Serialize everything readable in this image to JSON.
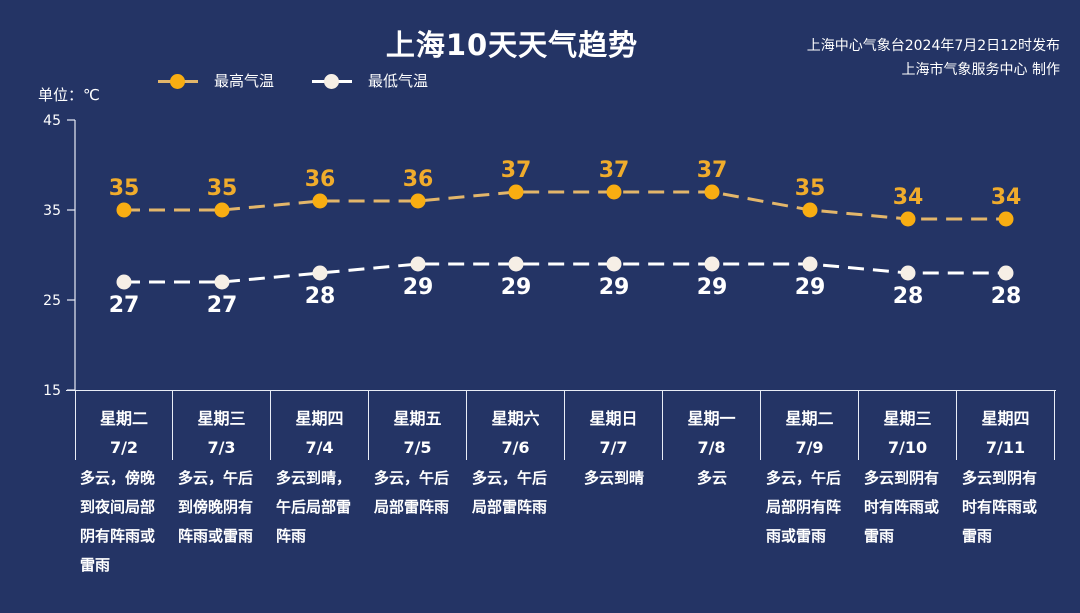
{
  "header": {
    "title": "上海10天天气趋势",
    "issuer_line1": "上海中心气象台2024年7月2日12时发布",
    "issuer_line2": "上海市气象服务中心 制作"
  },
  "legend": {
    "high_label": "最高气温",
    "low_label": "最低气温"
  },
  "unit_label": "单位：℃",
  "colors": {
    "background": "#243465",
    "high": "#f0ac2c",
    "high_line": "#e3b66a",
    "low": "#f6efe6",
    "low_line": "#ffffff",
    "text": "#ffffff"
  },
  "chart_data": {
    "type": "line",
    "title": "上海10天天气趋势",
    "xlabel": "",
    "ylabel": "单位：℃",
    "ylim": [
      15,
      45
    ],
    "yticks": [
      15,
      25,
      35,
      45
    ],
    "grid": false,
    "legend_position": "top-left",
    "categories": [
      "7/2",
      "7/3",
      "7/4",
      "7/5",
      "7/6",
      "7/7",
      "7/8",
      "7/9",
      "7/10",
      "7/11"
    ],
    "series": [
      {
        "name": "最高气温",
        "values": [
          35,
          35,
          36,
          36,
          37,
          37,
          37,
          35,
          34,
          34
        ],
        "style": "dashed",
        "color": "#f0ac2c"
      },
      {
        "name": "最低气温",
        "values": [
          27,
          27,
          28,
          29,
          29,
          29,
          29,
          29,
          28,
          28
        ],
        "style": "dashed",
        "color": "#ffffff"
      }
    ]
  },
  "days": [
    {
      "weekday": "星期二",
      "date": "7/2",
      "desc": "多云，傍晚到夜间局部阴有阵雨或雷雨",
      "lines": [
        "多云，傍晚",
        "到夜间局部",
        "阴有阵雨或",
        "雷雨"
      ]
    },
    {
      "weekday": "星期三",
      "date": "7/3",
      "desc": "多云，午后到傍晚阴有阵雨或雷雨",
      "lines": [
        "多云，午后",
        "到傍晚阴有",
        "阵雨或雷雨"
      ]
    },
    {
      "weekday": "星期四",
      "date": "7/4",
      "desc": "多云到晴，午后局部雷阵雨",
      "lines": [
        "多云到晴，",
        "午后局部雷",
        "阵雨"
      ]
    },
    {
      "weekday": "星期五",
      "date": "7/5",
      "desc": "多云，午后局部雷阵雨",
      "lines": [
        "多云，午后",
        "局部雷阵雨"
      ]
    },
    {
      "weekday": "星期六",
      "date": "7/6",
      "desc": "多云，午后局部雷阵雨",
      "lines": [
        "多云，午后",
        "局部雷阵雨"
      ]
    },
    {
      "weekday": "星期日",
      "date": "7/7",
      "desc": "多云到晴",
      "lines": [
        "多云到晴"
      ]
    },
    {
      "weekday": "星期一",
      "date": "7/8",
      "desc": "多云",
      "lines": [
        "多云"
      ]
    },
    {
      "weekday": "星期二",
      "date": "7/9",
      "desc": "多云，午后局部阴有阵雨或雷雨",
      "lines": [
        "多云，午后",
        "局部阴有阵",
        "雨或雷雨"
      ]
    },
    {
      "weekday": "星期三",
      "date": "7/10",
      "desc": "多云到阴有时有阵雨或雷雨",
      "lines": [
        "多云到阴有",
        "时有阵雨或",
        "雷雨"
      ]
    },
    {
      "weekday": "星期四",
      "date": "7/11",
      "desc": "多云到阴有时有阵雨或雷雨",
      "lines": [
        "多云到阴有",
        "时有阵雨或",
        "雷雨"
      ]
    }
  ]
}
